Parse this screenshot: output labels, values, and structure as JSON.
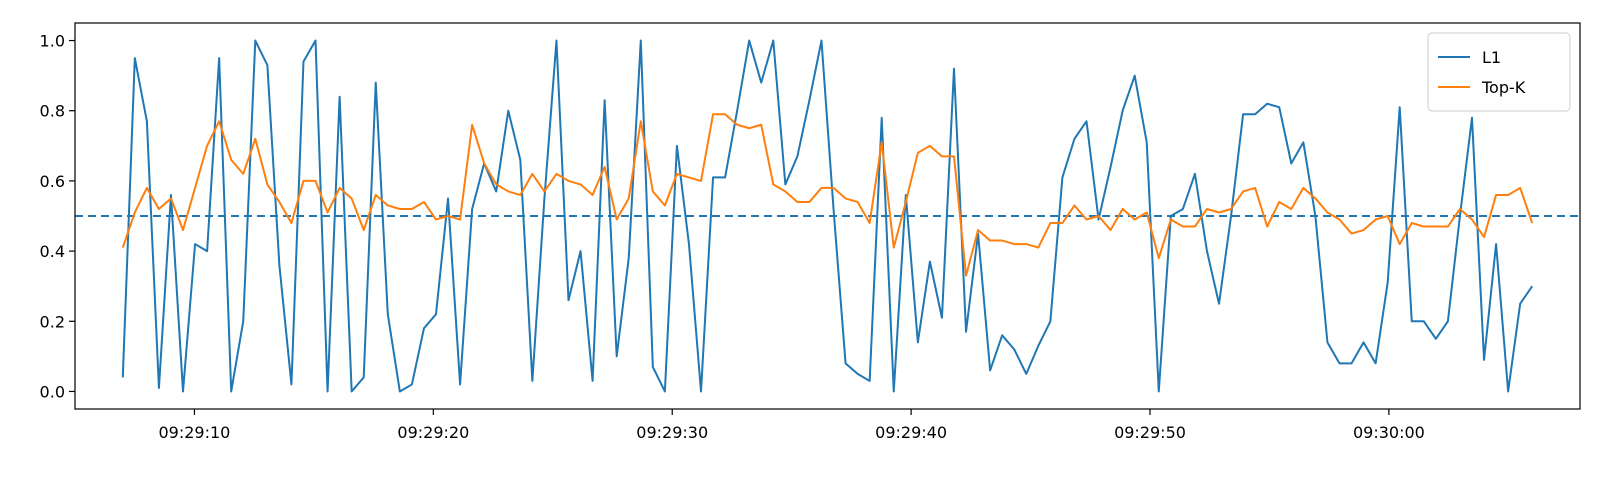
{
  "chart_data": {
    "type": "line",
    "xlabel": "",
    "ylabel": "",
    "x_start": "09:29:07",
    "x_end": "09:30:06",
    "xlim": [
      "09:29:05",
      "09:30:08"
    ],
    "ylim": [
      -0.05,
      1.05
    ],
    "x_ticks": [
      "09:29:10",
      "09:29:20",
      "09:29:30",
      "09:29:40",
      "09:29:50",
      "09:30:00"
    ],
    "y_ticks": [
      0.0,
      0.2,
      0.4,
      0.6,
      0.8,
      1.0
    ],
    "y_tick_labels": [
      "0.0",
      "0.2",
      "0.4",
      "0.6",
      "0.8",
      "1.0"
    ],
    "legend_position": "top-right",
    "grid": false,
    "reference_line": {
      "y": 0.5,
      "style": "dashed",
      "color": "#1f77b4"
    },
    "series": [
      {
        "name": "L1",
        "color": "#1f77b4",
        "values": [
          0.04,
          0.95,
          0.77,
          0.01,
          0.56,
          0.0,
          0.42,
          0.4,
          0.95,
          0.0,
          0.2,
          1.0,
          0.93,
          0.36,
          0.02,
          0.94,
          1.0,
          0.0,
          0.84,
          0.0,
          0.04,
          0.88,
          0.22,
          0.0,
          0.02,
          0.18,
          0.22,
          0.55,
          0.02,
          0.52,
          0.65,
          0.57,
          0.8,
          0.66,
          0.03,
          0.55,
          1.0,
          0.26,
          0.4,
          0.03,
          0.83,
          0.1,
          0.38,
          1.0,
          0.07,
          0.0,
          0.7,
          0.42,
          0.0,
          0.61,
          0.61,
          0.8,
          1.0,
          0.88,
          1.0,
          0.59,
          0.67,
          0.83,
          1.0,
          0.52,
          0.08,
          0.05,
          0.03,
          0.78,
          0.0,
          0.56,
          0.14,
          0.37,
          0.21,
          0.92,
          0.17,
          0.45,
          0.06,
          0.16,
          0.12,
          0.05,
          0.13,
          0.2,
          0.61,
          0.72,
          0.77,
          0.49,
          0.64,
          0.8,
          0.9,
          0.71,
          0.0,
          0.5,
          0.52,
          0.62,
          0.4,
          0.25,
          0.5,
          0.79,
          0.79,
          0.82,
          0.81,
          0.65,
          0.71,
          0.5,
          0.14,
          0.08,
          0.08,
          0.14,
          0.08,
          0.31,
          0.81,
          0.2,
          0.2,
          0.15,
          0.2,
          0.5,
          0.78,
          0.09,
          0.42,
          0.0,
          0.25,
          0.3
        ]
      },
      {
        "name": "Top-K",
        "color": "#ff7f0e",
        "values": [
          0.41,
          0.51,
          0.58,
          0.52,
          0.55,
          0.46,
          0.58,
          0.7,
          0.77,
          0.66,
          0.62,
          0.72,
          0.59,
          0.54,
          0.48,
          0.6,
          0.6,
          0.51,
          0.58,
          0.55,
          0.46,
          0.56,
          0.53,
          0.52,
          0.52,
          0.54,
          0.49,
          0.5,
          0.49,
          0.76,
          0.65,
          0.59,
          0.57,
          0.56,
          0.62,
          0.57,
          0.62,
          0.6,
          0.59,
          0.56,
          0.64,
          0.49,
          0.55,
          0.77,
          0.57,
          0.53,
          0.62,
          0.61,
          0.6,
          0.79,
          0.79,
          0.76,
          0.75,
          0.76,
          0.59,
          0.57,
          0.54,
          0.54,
          0.58,
          0.58,
          0.55,
          0.54,
          0.48,
          0.71,
          0.41,
          0.54,
          0.68,
          0.7,
          0.67,
          0.67,
          0.33,
          0.46,
          0.43,
          0.43,
          0.42,
          0.42,
          0.41,
          0.48,
          0.48,
          0.53,
          0.49,
          0.5,
          0.46,
          0.52,
          0.49,
          0.51,
          0.38,
          0.49,
          0.47,
          0.47,
          0.52,
          0.51,
          0.52,
          0.57,
          0.58,
          0.47,
          0.54,
          0.52,
          0.58,
          0.55,
          0.51,
          0.49,
          0.45,
          0.46,
          0.49,
          0.5,
          0.42,
          0.48,
          0.47,
          0.47,
          0.47,
          0.52,
          0.49,
          0.44,
          0.56,
          0.56,
          0.58,
          0.48
        ]
      }
    ]
  }
}
